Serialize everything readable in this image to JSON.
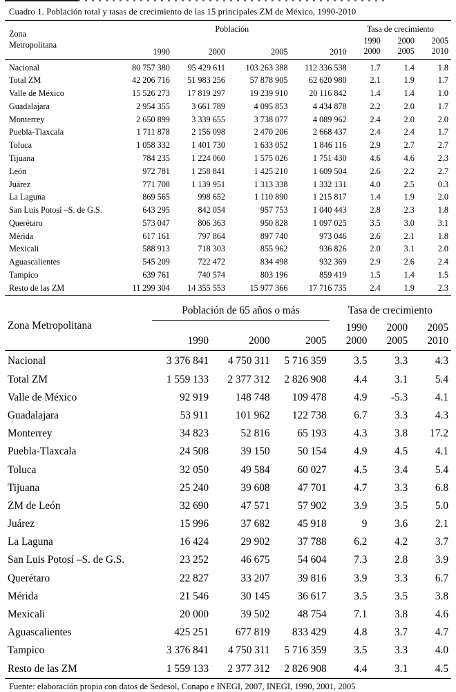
{
  "title": "Cuadro 1. Población total y tasas de crecimiento de las 15 principales ZM de México, 1990-2010",
  "footer": "Fuente: elaboración propia con datos de Sedesol, Conapo e INEGI, 2007, INEGI, 1990, 2001, 2005",
  "table1": {
    "col_zona": "Zona Metropolitana",
    "group_pop": "Población",
    "group_rate": "Tasa de crecimiento",
    "pop_years": [
      "1990",
      "2000",
      "2005",
      "2010"
    ],
    "rate_years": [
      {
        "from": "1990",
        "to": "2000"
      },
      {
        "from": "2000",
        "to": "2005"
      },
      {
        "from": "2005",
        "to": "2010"
      }
    ],
    "rows": [
      {
        "name": "Nacional",
        "pop": [
          "80 757 380",
          "95 429 611",
          "103 263 388",
          "112 336 538"
        ],
        "rates": [
          "1.7",
          "1.4",
          "1.8"
        ]
      },
      {
        "name": "Total ZM",
        "pop": [
          "42 206 716",
          "51 983 256",
          "57 878 905",
          "62 620 980"
        ],
        "rates": [
          "2.1",
          "1.9",
          "1.7"
        ]
      },
      {
        "name": "Valle de México",
        "pop": [
          "15 526 273",
          "17 819 297",
          "19 239 910",
          "20 116 842"
        ],
        "rates": [
          "1.4",
          "1.4",
          "1.0"
        ]
      },
      {
        "name": "Guadalajara",
        "pop": [
          "2 954 355",
          "3 661 789",
          "4 095 853",
          "4 434 878"
        ],
        "rates": [
          "2.2",
          "2.0",
          "1.7"
        ]
      },
      {
        "name": "Monterrey",
        "pop": [
          "2 650 899",
          "3 339 655",
          "3 738 077",
          "4 089 962"
        ],
        "rates": [
          "2.4",
          "2.0",
          "2.0"
        ]
      },
      {
        "name": "Puebla-Tlaxcala",
        "pop": [
          "1 711 878",
          "2 156 098",
          "2 470 206",
          "2 668 437"
        ],
        "rates": [
          "2.4",
          "2.4",
          "1.7"
        ]
      },
      {
        "name": "Toluca",
        "pop": [
          "1 058 332",
          "1 401 730",
          "1 633 052",
          "1 846 116"
        ],
        "rates": [
          "2.9",
          "2.7",
          "2.7"
        ]
      },
      {
        "name": "Tijuana",
        "pop": [
          "784 235",
          "1 224 060",
          "1 575 026",
          "1 751 430"
        ],
        "rates": [
          "4.6",
          "4.6",
          "2.3"
        ]
      },
      {
        "name": "León",
        "pop": [
          "972 781",
          "1 258 841",
          "1 425 210",
          "1 609 504"
        ],
        "rates": [
          "2.6",
          "2.2",
          "2.7"
        ]
      },
      {
        "name": "Juárez",
        "pop": [
          "771 708",
          "1 139 951",
          "1 313 338",
          "1 332 131"
        ],
        "rates": [
          "4.0",
          "2.5",
          "0.3"
        ]
      },
      {
        "name": "La Laguna",
        "pop": [
          "869 565",
          "998 652",
          "1 110 890",
          "1 215 817"
        ],
        "rates": [
          "1.4",
          "1.9",
          "2.0"
        ]
      },
      {
        "name": "San Luis Potosí –S. de G.S.",
        "pop": [
          "643 295",
          "842 054",
          "957 753",
          "1 040 443"
        ],
        "rates": [
          "2.8",
          "2.3",
          "1.8"
        ]
      },
      {
        "name": "Querétaro",
        "pop": [
          "573 047",
          "806 363",
          "950 828",
          "1 097 025"
        ],
        "rates": [
          "3.5",
          "3.0",
          "3.1"
        ]
      },
      {
        "name": "Mérida",
        "pop": [
          "617 161",
          "797 864",
          "897 740",
          "973 046"
        ],
        "rates": [
          "2.6",
          "2.1",
          "1.8"
        ]
      },
      {
        "name": "Mexicali",
        "pop": [
          "588 913",
          "718 303",
          "855 962",
          "936 826"
        ],
        "rates": [
          "2.0",
          "3.1",
          "2.0"
        ]
      },
      {
        "name": "Aguascalientes",
        "pop": [
          "545 209",
          "722 472",
          "834 498",
          "932 369"
        ],
        "rates": [
          "2.9",
          "2.6",
          "2.4"
        ]
      },
      {
        "name": "Tampico",
        "pop": [
          "639 761",
          "740 574",
          "803 196",
          "859 419"
        ],
        "rates": [
          "1.5",
          "1.4",
          "1.5"
        ]
      },
      {
        "name": "Resto de las ZM",
        "pop": [
          "11 299 304",
          "14 355 553",
          "15 977 366",
          "17 716 735"
        ],
        "rates": [
          "2.4",
          "1.9",
          "2.3"
        ]
      }
    ]
  },
  "table2": {
    "col_zona": "Zona Metropolitana",
    "group_pop": "Población de 65 años o más",
    "group_rate": "Tasa de crecimiento",
    "pop_years": [
      "1990",
      "2000",
      "2005"
    ],
    "rate_years": [
      {
        "from": "1990",
        "to": "2000"
      },
      {
        "from": "2000",
        "to": "2005"
      },
      {
        "from": "2005",
        "to": "2010"
      }
    ],
    "rows": [
      {
        "name": "Nacional",
        "pop": [
          "3 376 841",
          "4 750 311",
          "5 716 359"
        ],
        "rates": [
          "3.5",
          "3.3",
          "4.3"
        ]
      },
      {
        "name": "Total ZM",
        "pop": [
          "1 559 133",
          "2 377 312",
          "2 826 908"
        ],
        "rates": [
          "4.4",
          "3.1",
          "5.4"
        ]
      },
      {
        "name": "Valle de México",
        "pop": [
          "92 919",
          "148 748",
          "109 478"
        ],
        "rates": [
          "4.9",
          "-5.3",
          "4.1"
        ]
      },
      {
        "name": "Guadalajara",
        "pop": [
          "53 911",
          "101 962",
          "122 738"
        ],
        "rates": [
          "6.7",
          "3.3",
          "4.3"
        ]
      },
      {
        "name": "Monterrey",
        "pop": [
          "34 823",
          "52 816",
          "65 193"
        ],
        "rates": [
          "4.3",
          "3.8",
          "17.2"
        ]
      },
      {
        "name": "Puebla-Tlaxcala",
        "pop": [
          "24 508",
          "39 150",
          "50 154"
        ],
        "rates": [
          "4.9",
          "4.5",
          "4.1"
        ]
      },
      {
        "name": "Toluca",
        "pop": [
          "32 050",
          "49 584",
          "60 027"
        ],
        "rates": [
          "4.5",
          "3.4",
          "5.4"
        ]
      },
      {
        "name": "Tijuana",
        "pop": [
          "25 240",
          "39 608",
          "47 701"
        ],
        "rates": [
          "4.7",
          "3.3",
          "6.8"
        ]
      },
      {
        "name": "ZM de León",
        "pop": [
          "32 690",
          "47 571",
          "57 902"
        ],
        "rates": [
          "3.9",
          "3.5",
          "5.0"
        ]
      },
      {
        "name": "Juárez",
        "pop": [
          "15 996",
          "37 682",
          "45 918"
        ],
        "rates": [
          "9",
          "3.6",
          "2.1"
        ]
      },
      {
        "name": "La Laguna",
        "pop": [
          "16 424",
          "29 902",
          "37 788"
        ],
        "rates": [
          "6.2",
          "4.2",
          "3.7"
        ]
      },
      {
        "name": "San Luis Potosí –S. de G.S.",
        "pop": [
          "23 252",
          "46 675",
          "54 604"
        ],
        "rates": [
          "7.3",
          "2.8",
          "3.9"
        ]
      },
      {
        "name": "Querétaro",
        "pop": [
          "22 827",
          "33 207",
          "39 816"
        ],
        "rates": [
          "3.9",
          "3.3",
          "6.7"
        ]
      },
      {
        "name": "Mérida",
        "pop": [
          "21 546",
          "30 145",
          "36 617"
        ],
        "rates": [
          "3.5",
          "3.5",
          "3.8"
        ]
      },
      {
        "name": "Mexicali",
        "pop": [
          "20 000",
          "39 502",
          "48 754"
        ],
        "rates": [
          "7.1",
          "3.8",
          "4.6"
        ]
      },
      {
        "name": "Aguascalientes",
        "pop": [
          "425 251",
          "677 819",
          "833 429"
        ],
        "rates": [
          "4.8",
          "3.7",
          "4.7"
        ]
      },
      {
        "name": "Tampico",
        "pop": [
          "3 376 841",
          "4 750 311",
          "5 716 359"
        ],
        "rates": [
          "3.5",
          "3.3",
          "4.0"
        ]
      },
      {
        "name": "Resto de las ZM",
        "pop": [
          "1 559 133",
          "2 377 312",
          "2 826 908"
        ],
        "rates": [
          "4.4",
          "3.1",
          "4.5"
        ]
      }
    ]
  }
}
